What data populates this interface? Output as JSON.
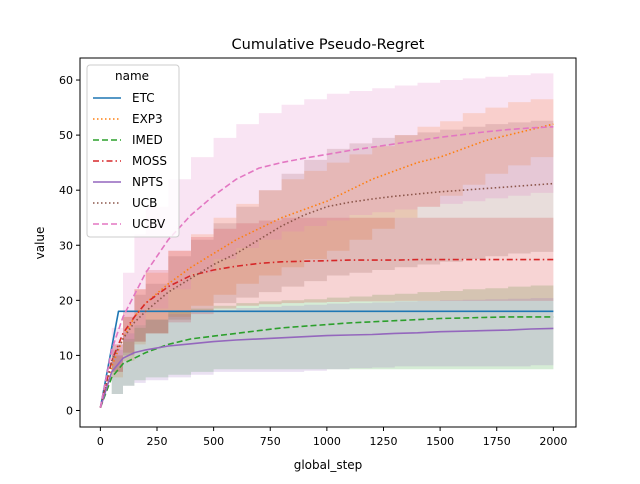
{
  "chart_data": {
    "type": "line",
    "title": "Cumulative Pseudo-Regret",
    "xlabel": "global_step",
    "ylabel": "value",
    "xlim": [
      -90,
      2100
    ],
    "ylim": [
      -3,
      64
    ],
    "xticks": [
      0,
      250,
      500,
      750,
      1000,
      1250,
      1500,
      1750,
      2000
    ],
    "yticks": [
      0,
      10,
      20,
      30,
      40,
      50,
      60
    ],
    "grid": false,
    "legend": {
      "title": "name",
      "placement": "upper-left"
    },
    "series": [
      {
        "name": "ETC",
        "color": "#1f77b4",
        "dash": "solid",
        "x": [
          0,
          80,
          2000
        ],
        "y": [
          0.5,
          18,
          18
        ],
        "lower": [
          0.5,
          18,
          18
        ],
        "upper": [
          0.5,
          18,
          18
        ]
      },
      {
        "name": "EXP3",
        "color": "#ff7f0e",
        "dash": "dotted",
        "x": [
          0,
          50,
          100,
          150,
          200,
          300,
          400,
          500,
          600,
          700,
          800,
          900,
          1000,
          1100,
          1200,
          1300,
          1400,
          1500,
          1600,
          1700,
          1800,
          1900,
          2000
        ],
        "y": [
          0.5,
          8,
          13,
          17,
          19.5,
          23,
          26,
          28.5,
          31,
          33,
          35,
          36.5,
          38,
          40,
          42,
          43.5,
          45,
          46,
          47.5,
          49,
          50,
          51,
          52
        ],
        "lower": [
          0.5,
          6,
          9,
          12,
          14,
          17,
          19,
          21,
          23,
          24.5,
          26,
          27.5,
          29,
          31,
          33,
          35,
          37,
          39,
          41,
          43,
          44.5,
          46,
          47
        ],
        "upper": [
          0.5,
          10,
          17,
          22,
          25,
          29,
          32,
          35,
          37.5,
          40,
          42,
          43.5,
          45,
          46.5,
          48,
          50,
          51.5,
          52.5,
          54,
          55,
          56,
          56.5,
          57
        ]
      },
      {
        "name": "IMED",
        "color": "#2ca02c",
        "dash": "dashed",
        "x": [
          0,
          50,
          100,
          150,
          200,
          300,
          400,
          500,
          600,
          700,
          800,
          900,
          1000,
          1100,
          1200,
          1300,
          1400,
          1500,
          1600,
          1700,
          1800,
          1900,
          2000
        ],
        "y": [
          0.5,
          6,
          8.5,
          9.5,
          10.5,
          12,
          13,
          13.5,
          14,
          14.5,
          15,
          15.3,
          15.6,
          15.9,
          16.1,
          16.3,
          16.5,
          16.7,
          16.8,
          16.9,
          17,
          17,
          17
        ],
        "lower": [
          0.5,
          3,
          4.5,
          5.5,
          6,
          6.5,
          7,
          7.5,
          7.5,
          7.5,
          7.5,
          7.5,
          7.5,
          7.5,
          7.5,
          7.5,
          7.5,
          7.5,
          7.5,
          7.5,
          7.5,
          7.5,
          7.5
        ],
        "upper": [
          0.5,
          10,
          13,
          15,
          16.5,
          18,
          18.5,
          19,
          19.5,
          19.8,
          20,
          20.2,
          20.5,
          20.7,
          21,
          21.2,
          21.5,
          21.7,
          22,
          22.2,
          22.5,
          22.7,
          23
        ]
      },
      {
        "name": "MOSS",
        "color": "#d62728",
        "dash": "dashdot",
        "x": [
          0,
          50,
          100,
          150,
          200,
          300,
          400,
          500,
          600,
          700,
          800,
          900,
          1000,
          1100,
          1200,
          1300,
          1400,
          1500,
          1600,
          1700,
          1800,
          1900,
          2000
        ],
        "y": [
          0.5,
          9,
          14,
          17,
          19.5,
          22.5,
          24.5,
          25.5,
          26.2,
          26.7,
          27,
          27.1,
          27.2,
          27.3,
          27.3,
          27.3,
          27.4,
          27.4,
          27.4,
          27.4,
          27.4,
          27.4,
          27.4
        ],
        "lower": [
          0.5,
          7,
          10.5,
          12.5,
          14,
          16,
          17.5,
          18.5,
          19,
          19.3,
          19.5,
          19.6,
          19.7,
          19.8,
          19.8,
          19.9,
          19.9,
          19.9,
          19.9,
          19.9,
          19.9,
          19.9,
          19.9
        ],
        "upper": [
          0.5,
          12,
          18,
          22,
          25.5,
          29,
          31.5,
          33,
          34,
          34.5,
          35,
          35,
          35,
          35,
          35,
          35,
          35,
          35,
          35,
          35,
          35,
          35,
          35
        ]
      },
      {
        "name": "NPTS",
        "color": "#9467bd",
        "dash": "solid",
        "x": [
          0,
          50,
          100,
          150,
          200,
          300,
          400,
          500,
          600,
          700,
          800,
          900,
          1000,
          1100,
          1200,
          1300,
          1400,
          1500,
          1600,
          1700,
          1800,
          1900,
          2000
        ],
        "y": [
          0.5,
          7,
          9.5,
          10.5,
          11,
          11.7,
          12.1,
          12.5,
          12.8,
          13,
          13.2,
          13.4,
          13.6,
          13.7,
          13.8,
          14,
          14.1,
          14.3,
          14.4,
          14.5,
          14.6,
          14.8,
          14.9
        ],
        "lower": [
          0.5,
          3,
          4.5,
          5,
          5.5,
          6,
          6.5,
          7,
          7,
          7,
          7,
          7.2,
          7.5,
          7.7,
          7.8,
          8,
          8,
          8,
          8,
          8,
          8,
          8.2,
          8.5
        ],
        "upper": [
          0.5,
          11,
          14,
          15.5,
          16.5,
          17.5,
          18,
          18.3,
          18.6,
          18.8,
          19,
          19.2,
          19.4,
          19.5,
          19.6,
          19.8,
          19.9,
          20,
          20.1,
          20.2,
          20.3,
          20.4,
          20.5
        ]
      },
      {
        "name": "UCB",
        "color": "#8c564b",
        "dash": "dotted",
        "x": [
          0,
          50,
          100,
          150,
          200,
          300,
          400,
          500,
          600,
          700,
          800,
          900,
          1000,
          1100,
          1200,
          1300,
          1400,
          1500,
          1600,
          1700,
          1800,
          1900,
          2000
        ],
        "y": [
          0.5,
          9,
          13,
          16,
          18,
          21.5,
          24,
          26.5,
          28.5,
          31,
          33.5,
          35.5,
          37,
          37.8,
          38.4,
          38.9,
          39.3,
          39.7,
          40,
          40.3,
          40.6,
          40.9,
          41.2
        ],
        "lower": [
          0.5,
          7,
          10,
          12.5,
          14,
          16.5,
          18,
          19.5,
          20.5,
          21.5,
          22.5,
          23.5,
          24.5,
          25,
          25.5,
          26,
          26.5,
          27,
          27.5,
          28,
          28.5,
          28.8,
          29
        ],
        "upper": [
          0.5,
          12,
          17,
          21,
          23,
          28,
          31,
          34,
          37,
          40,
          43,
          45.5,
          47.5,
          48.5,
          49.5,
          50,
          50.5,
          51,
          51.5,
          52,
          52.3,
          52.6,
          53
        ]
      },
      {
        "name": "UCBV",
        "color": "#e377c2",
        "dash": "dashed",
        "x": [
          0,
          50,
          100,
          150,
          200,
          300,
          400,
          500,
          600,
          700,
          800,
          900,
          1000,
          1100,
          1200,
          1300,
          1400,
          1500,
          1600,
          1700,
          1800,
          1900,
          2000
        ],
        "y": [
          0.5,
          11,
          17,
          21,
          25,
          31,
          35.5,
          39,
          42,
          44,
          45,
          45.8,
          46.5,
          47.2,
          47.8,
          48.4,
          49,
          49.6,
          50.1,
          50.6,
          51,
          51.3,
          51.5
        ],
        "lower": [
          0.5,
          8,
          12.5,
          15.5,
          18.5,
          22,
          25,
          27.5,
          29.5,
          31,
          32.5,
          33.5,
          34.5,
          35.5,
          36,
          36.5,
          37,
          37.5,
          38,
          38.5,
          39,
          39.5,
          40
        ],
        "upper": [
          0.5,
          15,
          25,
          32,
          37,
          42,
          46,
          49.5,
          52,
          54,
          55.5,
          56.5,
          57.5,
          58,
          58.5,
          59,
          59.5,
          60,
          60.3,
          60.6,
          60.9,
          61.2,
          61.5
        ]
      }
    ]
  }
}
